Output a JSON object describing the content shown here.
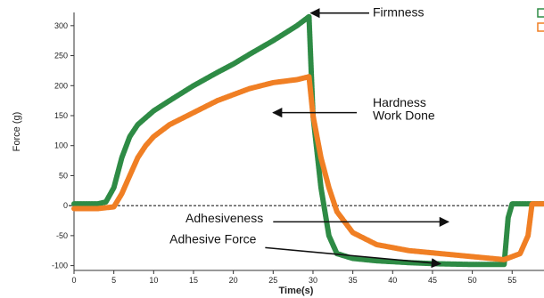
{
  "chart_data": {
    "type": "line",
    "title": "",
    "xlabel": "Time(s)",
    "ylabel": "Force (g)",
    "xlim": [
      0,
      59
    ],
    "ylim": [
      -108,
      322
    ],
    "x_ticks": [
      0,
      5,
      10,
      15,
      20,
      25,
      30,
      35,
      40,
      45,
      50,
      55
    ],
    "y_ticks": [
      -100,
      -50,
      0,
      50,
      100,
      150,
      200,
      250,
      300
    ],
    "grid": false,
    "legend": "top-right (clipped)",
    "series": [
      {
        "color": "#2e8b45",
        "points": [
          [
            0,
            3
          ],
          [
            3,
            3
          ],
          [
            4,
            6
          ],
          [
            5,
            30
          ],
          [
            6,
            80
          ],
          [
            7,
            115
          ],
          [
            8,
            135
          ],
          [
            10,
            158
          ],
          [
            12,
            175
          ],
          [
            15,
            200
          ],
          [
            18,
            222
          ],
          [
            20,
            236
          ],
          [
            22,
            252
          ],
          [
            25,
            275
          ],
          [
            28,
            300
          ],
          [
            29.5,
            315
          ],
          [
            30,
            150
          ],
          [
            31,
            30
          ],
          [
            32,
            -50
          ],
          [
            33,
            -80
          ],
          [
            35,
            -88
          ],
          [
            38,
            -92
          ],
          [
            42,
            -95
          ],
          [
            46,
            -97
          ],
          [
            50,
            -98
          ],
          [
            54,
            -98
          ],
          [
            54.5,
            -20
          ],
          [
            55,
            3
          ],
          [
            59,
            3
          ]
        ]
      },
      {
        "color": "#f07f24",
        "points": [
          [
            0,
            -5
          ],
          [
            3,
            -5
          ],
          [
            5,
            -2
          ],
          [
            6,
            20
          ],
          [
            7,
            50
          ],
          [
            8,
            80
          ],
          [
            9,
            100
          ],
          [
            10,
            115
          ],
          [
            12,
            135
          ],
          [
            15,
            155
          ],
          [
            18,
            175
          ],
          [
            20,
            185
          ],
          [
            22,
            195
          ],
          [
            25,
            205
          ],
          [
            28,
            210
          ],
          [
            29.5,
            215
          ],
          [
            30,
            150
          ],
          [
            31,
            80
          ],
          [
            32,
            30
          ],
          [
            33,
            -10
          ],
          [
            35,
            -45
          ],
          [
            38,
            -65
          ],
          [
            42,
            -75
          ],
          [
            46,
            -80
          ],
          [
            50,
            -85
          ],
          [
            54,
            -90
          ],
          [
            56,
            -80
          ],
          [
            57,
            -50
          ],
          [
            57.5,
            3
          ],
          [
            59,
            3
          ]
        ]
      }
    ],
    "annotations": [
      {
        "text": "Firmness",
        "x": 37.5,
        "y": 315,
        "arrow": "left",
        "arrow_to": [
          29.5,
          315
        ]
      },
      {
        "text": "Hardness",
        "x": 37.5,
        "y": 165,
        "arrow": "none"
      },
      {
        "text": "Work Done",
        "x": 37.5,
        "y": 143,
        "arrow": "left",
        "arrow_from": [
          35.5,
          155
        ],
        "arrow_to": [
          25,
          155
        ]
      },
      {
        "text": "Adhesiveness",
        "x": 14,
        "y": -28,
        "arrow": "right",
        "arrow_from": [
          25,
          -27
        ],
        "arrow_to": [
          47,
          -27
        ]
      },
      {
        "text": "Adhesive Force",
        "x": 12,
        "y": -63,
        "arrow": "right",
        "arrow_from": [
          24,
          -70
        ],
        "arrow_to": [
          46,
          -97
        ]
      }
    ]
  }
}
